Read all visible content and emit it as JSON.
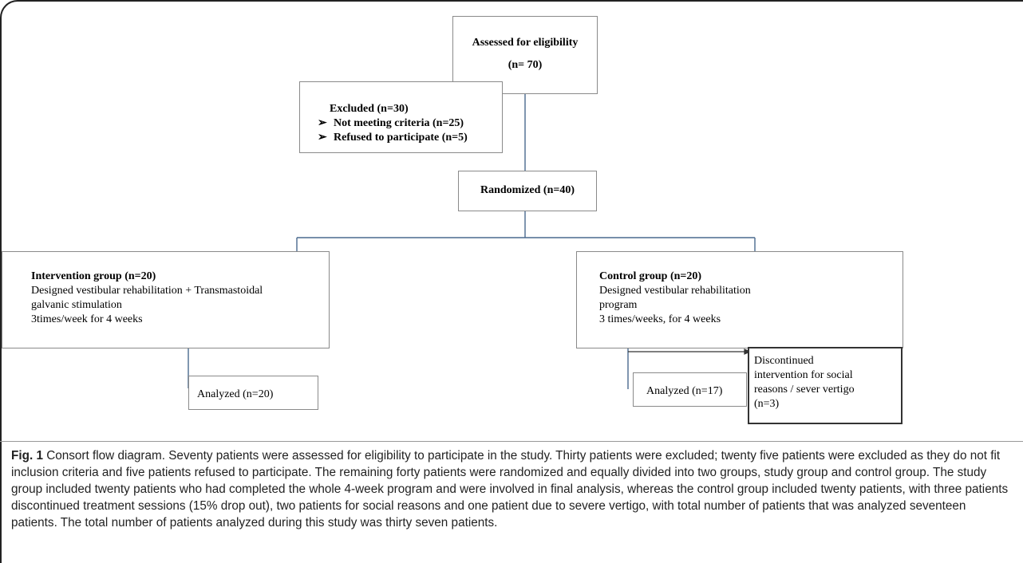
{
  "diagram": {
    "assessed": {
      "title": "Assessed for eligibility",
      "count": "(n= 70)"
    },
    "excluded": {
      "title": "Excluded (n=30)",
      "items": [
        "Not meeting criteria (n=25)",
        "Refused to participate (n=5)"
      ],
      "bullet": "➢"
    },
    "randomized": {
      "title": "Randomized (n=40)"
    },
    "intervention": {
      "title": "Intervention group (n=20)",
      "lines": [
        "Designed vestibular rehabilitation + Transmastoidal",
        "galvanic stimulation",
        "3times/week for 4 weeks"
      ]
    },
    "control": {
      "title": "Control group (n=20)",
      "lines": [
        "Designed vestibular rehabilitation",
        "program",
        "3 times/weeks, for 4 weeks"
      ]
    },
    "analyzed_intervention": {
      "label": "Analyzed (n=20)"
    },
    "analyzed_control": {
      "label": "Analyzed (n=17)"
    },
    "discontinued": {
      "lines": [
        "Discontinued",
        "intervention for social",
        "reasons / sever vertigo",
        "(n=3)"
      ]
    }
  },
  "caption": {
    "label": "Fig. 1",
    "text": "Consort flow diagram. Seventy patients were assessed for eligibility to participate in the study. Thirty patients were excluded; twenty five patients were excluded as they do not fit inclusion criteria and five patients refused to participate. The remaining forty patients were randomized and equally divided into two groups, study group and control group. The study group included twenty patients who had completed the whole 4-week program and were involved in final analysis, whereas the control group included twenty patients, with three patients discontinued treatment sessions (15% drop out), two patients for social reasons and one patient due to severe vertigo, with total number of patients that was analyzed seventeen patients. The total number of patients analyzed during this study was thirty seven patients."
  },
  "colors": {
    "connector": "#4a6a8e",
    "box_border": "#8a8a8a",
    "frame": "#222222"
  }
}
